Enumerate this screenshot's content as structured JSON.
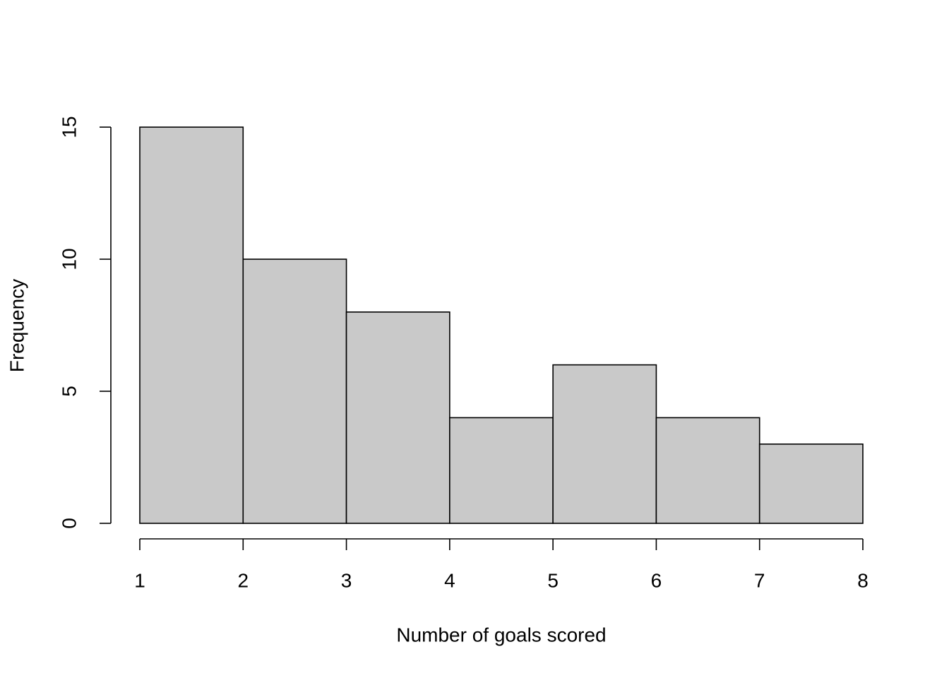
{
  "chart_data": {
    "type": "histogram",
    "x_label": "Number of goals scored",
    "y_label": "Frequency",
    "bins": [
      1,
      2,
      3,
      4,
      5,
      6,
      7,
      8
    ],
    "values": [
      15,
      10,
      8,
      4,
      6,
      4,
      3
    ],
    "color": "#c9c9c9",
    "xlim": [
      1,
      8
    ],
    "xticks": [
      1,
      2,
      3,
      4,
      5,
      6,
      7,
      8
    ],
    "ylim": [
      0,
      15
    ],
    "yticks": [
      0,
      5,
      10,
      15
    ],
    "grid": false
  }
}
